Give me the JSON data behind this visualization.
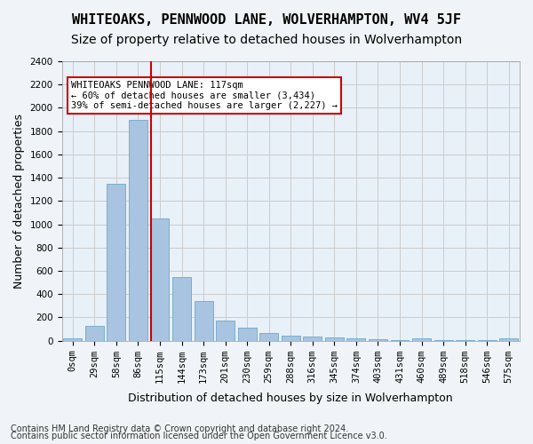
{
  "title": "WHITEOAKS, PENNWOOD LANE, WOLVERHAMPTON, WV4 5JF",
  "subtitle": "Size of property relative to detached houses in Wolverhampton",
  "xlabel": "Distribution of detached houses by size in Wolverhampton",
  "ylabel": "Number of detached properties",
  "bar_labels": [
    "0sqm",
    "29sqm",
    "58sqm",
    "86sqm",
    "115sqm",
    "144sqm",
    "173sqm",
    "201sqm",
    "230sqm",
    "259sqm",
    "288sqm",
    "316sqm",
    "345sqm",
    "374sqm",
    "403sqm",
    "431sqm",
    "460sqm",
    "489sqm",
    "518sqm",
    "546sqm",
    "575sqm"
  ],
  "bar_values": [
    20,
    130,
    1350,
    1900,
    1050,
    550,
    340,
    175,
    115,
    65,
    40,
    35,
    30,
    20,
    15,
    2,
    20,
    2,
    2,
    2,
    20
  ],
  "bar_color": "#a8c4e0",
  "bar_edge_color": "#7aaecf",
  "grid_color": "#cccccc",
  "bg_color": "#e8f0f8",
  "fig_bg_color": "#f0f4f8",
  "vline_x_index": 4,
  "vline_color": "#cc0000",
  "annotation_text": "WHITEOAKS PENNWOOD LANE: 117sqm\n← 60% of detached houses are smaller (3,434)\n39% of semi-detached houses are larger (2,227) →",
  "annotation_box_color": "#ffffff",
  "annotation_box_edge": "#cc0000",
  "ylim": [
    0,
    2400
  ],
  "yticks": [
    0,
    200,
    400,
    600,
    800,
    1000,
    1200,
    1400,
    1600,
    1800,
    2000,
    2200,
    2400
  ],
  "footer1": "Contains HM Land Registry data © Crown copyright and database right 2024.",
  "footer2": "Contains public sector information licensed under the Open Government Licence v3.0.",
  "title_fontsize": 11,
  "subtitle_fontsize": 10,
  "xlabel_fontsize": 9,
  "ylabel_fontsize": 9,
  "tick_fontsize": 7.5,
  "annotation_fontsize": 7.5,
  "footer_fontsize": 7
}
